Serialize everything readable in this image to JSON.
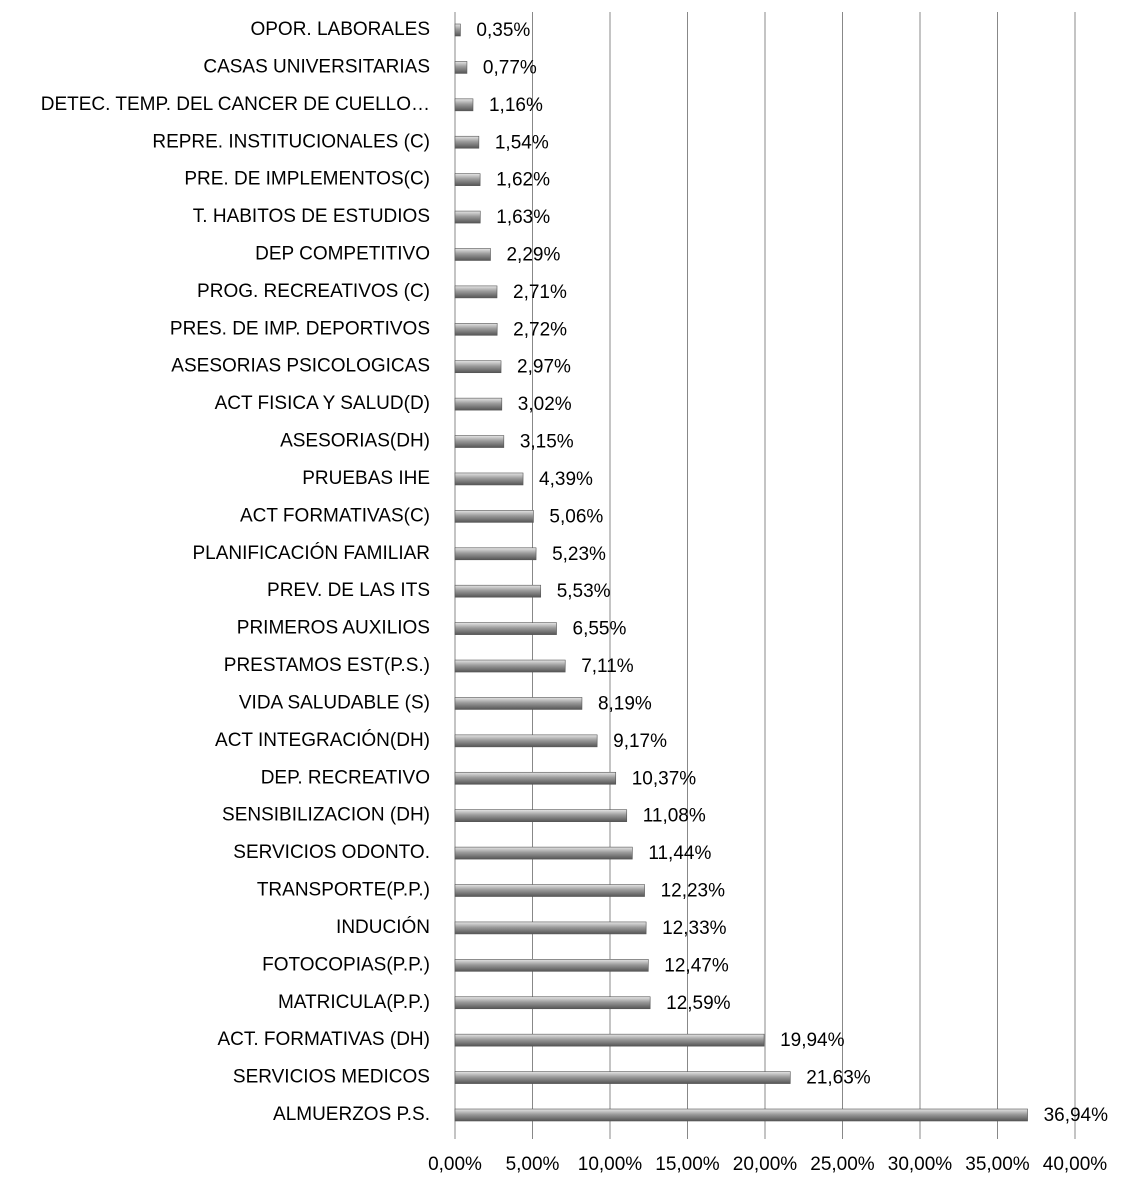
{
  "chart_data": {
    "type": "bar",
    "orientation": "horizontal",
    "categories": [
      "OPOR. LABORALES",
      "CASAS UNIVERSITARIAS",
      "DETEC. TEMP. DEL CANCER DE CUELLO…",
      "REPRE. INSTITUCIONALES (C)",
      "PRE. DE IMPLEMENTOS(C)",
      "T. HABITOS DE ESTUDIOS",
      "DEP COMPETITIVO",
      "PROG. RECREATIVOS (C)",
      "PRES. DE IMP. DEPORTIVOS",
      "ASESORIAS PSICOLOGICAS",
      "ACT FISICA Y SALUD(D)",
      "ASESORIAS(DH)",
      "PRUEBAS IHE",
      "ACT FORMATIVAS(C)",
      "PLANIFICACIÓN FAMILIAR",
      "PREV. DE LAS ITS",
      "PRIMEROS AUXILIOS",
      "PRESTAMOS EST(P.S.)",
      "VIDA SALUDABLE (S)",
      "ACT INTEGRACIÓN(DH)",
      "DEP. RECREATIVO",
      "SENSIBILIZACION (DH)",
      "SERVICIOS ODONTO.",
      "TRANSPORTE(P.P.)",
      "INDUCIÓN",
      "FOTOCOPIAS(P.P.)",
      "MATRICULA(P.P.)",
      "ACT. FORMATIVAS (DH)",
      "SERVICIOS MEDICOS",
      "ALMUERZOS P.S."
    ],
    "values": [
      0.35,
      0.77,
      1.16,
      1.54,
      1.62,
      1.63,
      2.29,
      2.71,
      2.72,
      2.97,
      3.02,
      3.15,
      4.39,
      5.06,
      5.23,
      5.53,
      6.55,
      7.11,
      8.19,
      9.17,
      10.37,
      11.08,
      11.44,
      12.23,
      12.33,
      12.47,
      12.59,
      19.94,
      21.63,
      36.94
    ],
    "value_labels": [
      "0,35%",
      "0,77%",
      "1,16%",
      "1,54%",
      "1,62%",
      "1,63%",
      "2,29%",
      "2,71%",
      "2,72%",
      "2,97%",
      "3,02%",
      "3,15%",
      "4,39%",
      "5,06%",
      "5,23%",
      "5,53%",
      "6,55%",
      "7,11%",
      "8,19%",
      "9,17%",
      "10,37%",
      "11,08%",
      "11,44%",
      "12,23%",
      "12,33%",
      "12,47%",
      "12,59%",
      "19,94%",
      "21,63%",
      "36,94%"
    ],
    "color": "#8c8c8c",
    "xlim": [
      0,
      40
    ],
    "xticks": [
      {
        "value": 0,
        "label": "0,00%"
      },
      {
        "value": 5,
        "label": "5,00%"
      },
      {
        "value": 10,
        "label": "10,00%"
      },
      {
        "value": 15,
        "label": "15,00%"
      },
      {
        "value": 20,
        "label": "20,00%"
      },
      {
        "value": 25,
        "label": "25,00%"
      },
      {
        "value": 30,
        "label": "30,00%"
      },
      {
        "value": 35,
        "label": "35,00%"
      },
      {
        "value": 40,
        "label": "40,00%"
      }
    ],
    "grid": true
  }
}
